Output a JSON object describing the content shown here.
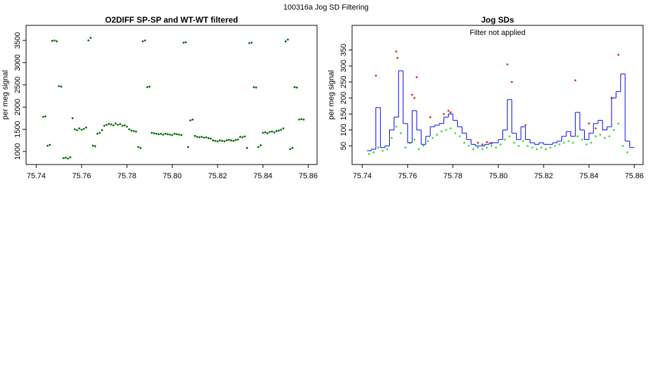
{
  "title": "100316a   Jog SD Filtering",
  "chart_data": [
    {
      "type": "scatter",
      "title": "O2DIFF SP-SP and WT-WT filtered",
      "y_label": "per meg signal",
      "xlim": [
        75.7355,
        75.8639
      ],
      "ylim": [
        707,
        3840
      ],
      "xticks": [
        75.74,
        75.76,
        75.78,
        {
          "value": 75.8,
          "label": "75.80"
        },
        75.82,
        75.84,
        75.86
      ],
      "yticks": [
        1000,
        1500,
        2000,
        2500,
        3000,
        3500
      ],
      "series": [
        {
          "color": "#006400",
          "mode": "points",
          "x": [
            75.743,
            75.744,
            75.745,
            75.746,
            75.747,
            75.748,
            75.749,
            75.75,
            75.751,
            75.752,
            75.753,
            75.754,
            75.755,
            75.756,
            75.757,
            75.758,
            75.759,
            75.76,
            75.761,
            75.762,
            75.763,
            75.764,
            75.765,
            75.766,
            75.767,
            75.768,
            75.769,
            75.77,
            75.771,
            75.772,
            75.773,
            75.774,
            75.775,
            75.776,
            75.777,
            75.778,
            75.779,
            75.78,
            75.781,
            75.782,
            75.783,
            75.784,
            75.785,
            75.786,
            75.787,
            75.788,
            75.789,
            75.79,
            75.791,
            75.792,
            75.793,
            75.794,
            75.795,
            75.796,
            75.797,
            75.798,
            75.799,
            75.8,
            75.801,
            75.802,
            75.803,
            75.804,
            75.805,
            75.806,
            75.807,
            75.808,
            75.809,
            75.81,
            75.811,
            75.812,
            75.813,
            75.814,
            75.815,
            75.816,
            75.817,
            75.818,
            75.819,
            75.82,
            75.821,
            75.822,
            75.823,
            75.824,
            75.825,
            75.826,
            75.827,
            75.828,
            75.829,
            75.83,
            75.831,
            75.832,
            75.833,
            75.834,
            75.835,
            75.836,
            75.837,
            75.838,
            75.839,
            75.84,
            75.841,
            75.842,
            75.843,
            75.844,
            75.845,
            75.846,
            75.847,
            75.848,
            75.849,
            75.85,
            75.851,
            75.852,
            75.853,
            75.854,
            75.855,
            75.856,
            75.857,
            75.858
          ],
          "values": [
            1780,
            1790,
            1130,
            1150,
            3490,
            3500,
            3480,
            2470,
            2460,
            850,
            860,
            840,
            870,
            1750,
            1500,
            1480,
            1520,
            1490,
            1510,
            1540,
            3500,
            3560,
            1130,
            1120,
            1400,
            1420,
            1480,
            1580,
            1600,
            1620,
            1610,
            1590,
            1630,
            1600,
            1620,
            1580,
            1590,
            1560,
            1500,
            1470,
            1460,
            1450,
            1100,
            1080,
            3480,
            3500,
            2450,
            2460,
            1420,
            1410,
            1400,
            1390,
            1400,
            1380,
            1400,
            1390,
            1380,
            1370,
            1400,
            1390,
            1380,
            1370,
            3450,
            3460,
            1100,
            1700,
            1720,
            1350,
            1330,
            1320,
            1330,
            1310,
            1320,
            1300,
            1290,
            1250,
            1240,
            1230,
            1250,
            1240,
            1230,
            1250,
            1260,
            1250,
            1240,
            1260,
            1270,
            1330,
            1320,
            1340,
            1080,
            3440,
            3450,
            2450,
            2440,
            1100,
            1140,
            1420,
            1430,
            1410,
            1440,
            1450,
            1430,
            1460,
            1470,
            1490,
            1520,
            3480,
            3520,
            1050,
            1080,
            2450,
            2440,
            1720,
            1730,
            1720
          ]
        }
      ]
    },
    {
      "type": "scatter",
      "title": "Jog SDs",
      "y_label": "per meg signal",
      "annotation": "Filter not applied",
      "xlim": [
        75.7355,
        75.8639
      ],
      "ylim": [
        -8,
        427
      ],
      "xticks": [
        75.74,
        75.76,
        75.78,
        {
          "value": 75.8,
          "label": "75.80"
        },
        75.82,
        75.84,
        75.86
      ],
      "yticks": [
        50,
        100,
        150,
        200,
        250,
        300,
        350
      ],
      "series": [
        {
          "color": "#33dd33",
          "mode": "points",
          "x": [
            75.743,
            75.745,
            75.747,
            75.749,
            75.751,
            75.753,
            75.755,
            75.757,
            75.759,
            75.761,
            75.763,
            75.765,
            75.767,
            75.769,
            75.771,
            75.773,
            75.775,
            75.777,
            75.779,
            75.781,
            75.783,
            75.785,
            75.787,
            75.789,
            75.791,
            75.793,
            75.795,
            75.797,
            75.799,
            75.801,
            75.803,
            75.805,
            75.807,
            75.809,
            75.811,
            75.813,
            75.815,
            75.817,
            75.819,
            75.821,
            75.823,
            75.825,
            75.827,
            75.829,
            75.831,
            75.833,
            75.835,
            75.837,
            75.839,
            75.841,
            75.843,
            75.845,
            75.847,
            75.849,
            75.851,
            75.853,
            75.855,
            75.857
          ],
          "values": [
            25,
            30,
            45,
            35,
            40,
            75,
            110,
            90,
            45,
            60,
            70,
            40,
            50,
            65,
            75,
            85,
            95,
            100,
            105,
            90,
            80,
            60,
            50,
            40,
            45,
            40,
            45,
            50,
            45,
            55,
            70,
            80,
            60,
            50,
            65,
            50,
            45,
            40,
            45,
            40,
            45,
            50,
            55,
            60,
            65,
            60,
            80,
            70,
            55,
            60,
            80,
            85,
            75,
            80,
            100,
            120,
            50,
            30
          ]
        },
        {
          "color": "#cc3300",
          "mode": "points",
          "x": [
            75.746,
            75.755,
            75.7555,
            75.764,
            75.762,
            75.778,
            75.779,
            75.776,
            75.791,
            75.793,
            75.795,
            75.797,
            75.804,
            75.806,
            75.812,
            75.834,
            75.84,
            75.843,
            75.85,
            75.853,
            75.763,
            75.77
          ],
          "values": [
            270,
            345,
            325,
            265,
            210,
            160,
            155,
            150,
            60,
            55,
            62,
            58,
            305,
            250,
            115,
            255,
            120,
            105,
            200,
            335,
            200,
            140
          ]
        },
        {
          "color": "#0000ff",
          "mode": "step",
          "x": [
            75.742,
            75.744,
            75.746,
            75.748,
            75.75,
            75.752,
            75.754,
            75.756,
            75.758,
            75.76,
            75.762,
            75.764,
            75.766,
            75.768,
            75.77,
            75.772,
            75.774,
            75.776,
            75.778,
            75.78,
            75.782,
            75.784,
            75.786,
            75.788,
            75.79,
            75.792,
            75.794,
            75.796,
            75.798,
            75.8,
            75.802,
            75.804,
            75.806,
            75.808,
            75.81,
            75.812,
            75.814,
            75.816,
            75.818,
            75.82,
            75.822,
            75.824,
            75.826,
            75.828,
            75.83,
            75.832,
            75.834,
            75.836,
            75.838,
            75.84,
            75.842,
            75.844,
            75.846,
            75.848,
            75.85,
            75.852,
            75.854,
            75.856,
            75.858
          ],
          "values": [
            35,
            40,
            170,
            45,
            50,
            100,
            140,
            285,
            120,
            60,
            160,
            100,
            55,
            80,
            110,
            115,
            120,
            140,
            150,
            130,
            110,
            90,
            70,
            55,
            50,
            50,
            55,
            60,
            60,
            70,
            100,
            195,
            90,
            70,
            110,
            70,
            60,
            55,
            60,
            55,
            55,
            60,
            65,
            80,
            95,
            80,
            155,
            100,
            70,
            90,
            120,
            130,
            100,
            110,
            200,
            220,
            275,
            65,
            45
          ]
        }
      ]
    }
  ]
}
